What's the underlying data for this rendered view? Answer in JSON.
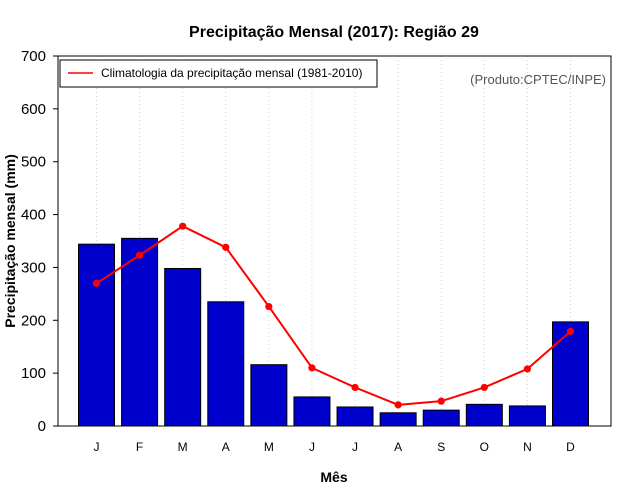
{
  "chart_data": {
    "type": "bar",
    "title": "Precipitação Mensal (2017): Região 29",
    "xlabel": "Mês",
    "ylabel": "Precipitação mensal (mm)",
    "categories": [
      "J",
      "F",
      "M",
      "A",
      "M",
      "J",
      "J",
      "A",
      "S",
      "O",
      "N",
      "D"
    ],
    "ylim": [
      0,
      700
    ],
    "yticks": [
      0,
      100,
      200,
      300,
      400,
      500,
      600,
      700
    ],
    "grid": "vertical dotted",
    "series": [
      {
        "name": "Precipitação mensal (2017)",
        "kind": "bar",
        "color": "#0000CD",
        "values": [
          344,
          355,
          298,
          235,
          116,
          55,
          36,
          25,
          30,
          41,
          38,
          197
        ]
      },
      {
        "name": "Climatologia da precipitação mensal (1981-2010)",
        "kind": "line",
        "color": "#FF0000",
        "values": [
          270,
          323,
          378,
          338,
          226,
          110,
          73,
          40,
          47,
          73,
          108,
          179
        ]
      }
    ],
    "legend": {
      "position": "top-left",
      "entries": [
        "Climatologia da precipitação mensal (1981-2010)"
      ]
    },
    "annotation": "(Produto:CPTEC/INPE)"
  }
}
